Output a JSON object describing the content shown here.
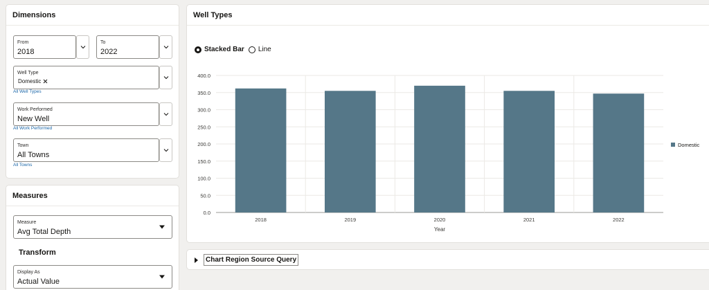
{
  "dimensions": {
    "title": "Dimensions",
    "from": {
      "label": "From",
      "value": "2018"
    },
    "to": {
      "label": "To",
      "value": "2022"
    },
    "well_type": {
      "label": "Well Type",
      "chip": "Domestic",
      "link": "All Well Types"
    },
    "work_performed": {
      "label": "Work Performed",
      "value": "New Well",
      "link": "All Work Performed"
    },
    "town": {
      "label": "Town",
      "value": "All Towns",
      "link": "All Towns"
    }
  },
  "measures": {
    "title": "Measures",
    "measure": {
      "label": "Measure",
      "value": "Avg Total Depth"
    },
    "transform_title": "Transform",
    "display_as": {
      "label": "Display As",
      "value": "Actual Value"
    }
  },
  "well_types": {
    "title": "Well Types",
    "radio_stacked": "Stacked Bar",
    "radio_line": "Line"
  },
  "query": {
    "label": "Chart Region Source Query"
  },
  "chart_data": {
    "type": "bar",
    "categories": [
      "2018",
      "2019",
      "2020",
      "2021",
      "2022"
    ],
    "series": [
      {
        "name": "Domestic",
        "values": [
          362,
          355,
          370,
          355,
          347
        ],
        "color": "#557788"
      }
    ],
    "xlabel": "Year",
    "ylabel": "",
    "ylim": [
      0,
      400
    ],
    "yticks": [
      "0.0",
      "50.0",
      "100.0",
      "150.0",
      "200.0",
      "250.0",
      "300.0",
      "350.0",
      "400.0"
    ],
    "grid": true,
    "legend": "right"
  }
}
